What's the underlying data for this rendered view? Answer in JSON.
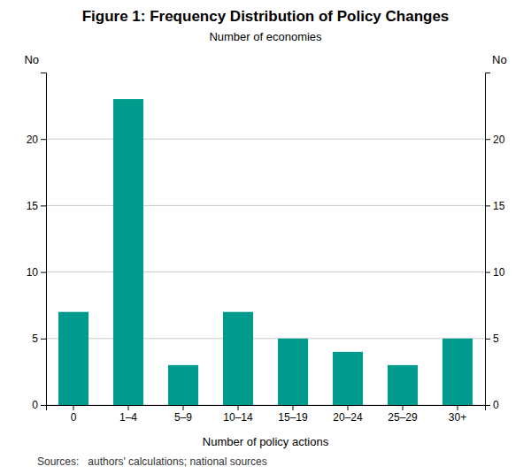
{
  "chart_data": {
    "type": "bar",
    "title": "Figure 1: Frequency Distribution of Policy Changes",
    "subtitle": "Number of economies",
    "xlabel": "Number of policy actions",
    "ylabel": "No",
    "y2label": "No",
    "categories": [
      "0",
      "1–4",
      "5–9",
      "10–14",
      "15–19",
      "20–24",
      "25–29",
      "30+"
    ],
    "values": [
      7,
      23,
      3,
      7,
      5,
      4,
      3,
      5
    ],
    "color": "#009B8D",
    "ylim": [
      0,
      25
    ],
    "yticks": [
      0,
      5,
      10,
      15,
      20
    ],
    "y2lim": [
      0,
      25
    ],
    "y2ticks": [
      0,
      5,
      10,
      15,
      20
    ],
    "grid": true,
    "annotations": [
      "Sources:   authors' calculations; national sources"
    ]
  }
}
